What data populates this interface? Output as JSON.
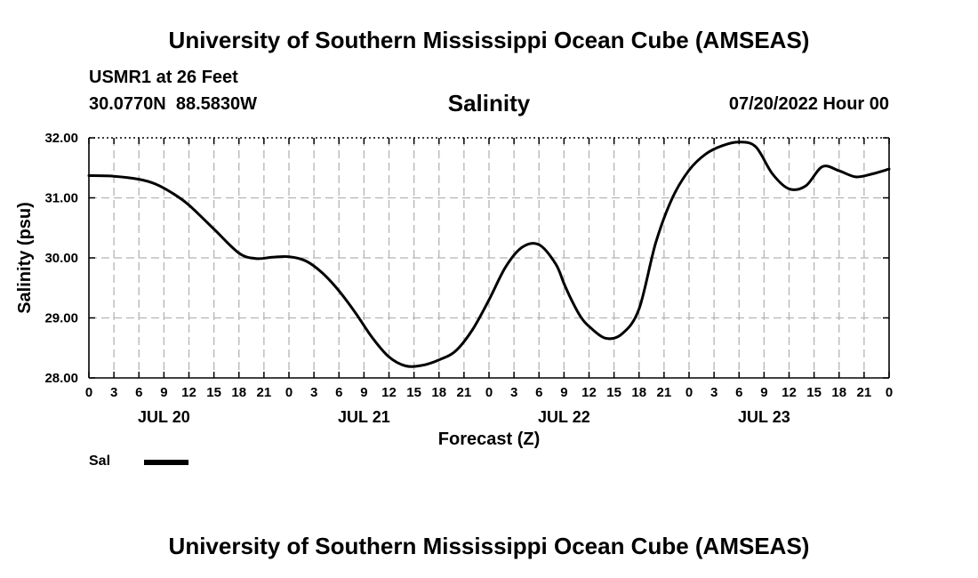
{
  "header": {
    "title": "University of Southern Mississippi Ocean Cube (AMSEAS)",
    "station": "USMR1 at 26 Feet",
    "coords": "30.0770N  88.5830W",
    "datetime": "07/20/2022 Hour 00"
  },
  "footer": {
    "title": "University of Southern Mississippi Ocean Cube (AMSEAS)"
  },
  "legend": {
    "label": "Sal"
  },
  "chart_data": {
    "type": "line",
    "title": "Salinity",
    "xlabel": "Forecast (Z)",
    "ylabel": "Salinity (psu)",
    "ylim": [
      28.0,
      32.0
    ],
    "xlim": [
      0,
      96
    ],
    "grid": true,
    "y_ticks": [
      "28.00",
      "29.00",
      "30.00",
      "31.00",
      "32.00"
    ],
    "x_ticks": [
      "0",
      "3",
      "6",
      "9",
      "12",
      "15",
      "18",
      "21",
      "0",
      "3",
      "6",
      "9",
      "12",
      "15",
      "18",
      "21",
      "0",
      "3",
      "6",
      "9",
      "12",
      "15",
      "18",
      "21",
      "0",
      "3",
      "6",
      "9",
      "12",
      "15",
      "18",
      "21",
      "0"
    ],
    "day_labels": [
      {
        "label": "JUL 20",
        "hour": 9
      },
      {
        "label": "JUL 21",
        "hour": 33
      },
      {
        "label": "JUL 22",
        "hour": 57
      },
      {
        "label": "JUL 23",
        "hour": 81
      }
    ],
    "series": [
      {
        "name": "Sal",
        "x": [
          0,
          3,
          6,
          8,
          10,
          12,
          15,
          18,
          20,
          22,
          24,
          26,
          28,
          30,
          32,
          34,
          36,
          38,
          40,
          42,
          44,
          46,
          48,
          50,
          52,
          54,
          56,
          57,
          58,
          59,
          60,
          62,
          64,
          66,
          68,
          70,
          72,
          74,
          76,
          78,
          80,
          82,
          84,
          86,
          88,
          90,
          92,
          94,
          96
        ],
        "values": [
          31.37,
          31.36,
          31.31,
          31.23,
          31.08,
          30.88,
          30.48,
          30.08,
          29.99,
          30.01,
          30.02,
          29.95,
          29.75,
          29.45,
          29.08,
          28.67,
          28.35,
          28.2,
          28.21,
          28.3,
          28.45,
          28.8,
          29.3,
          29.85,
          30.18,
          30.22,
          29.9,
          29.57,
          29.27,
          29.02,
          28.86,
          28.66,
          28.74,
          29.15,
          30.25,
          31.0,
          31.46,
          31.73,
          31.87,
          31.93,
          31.85,
          31.4,
          31.15,
          31.2,
          31.52,
          31.45,
          31.35,
          31.4,
          31.48
        ]
      }
    ]
  }
}
